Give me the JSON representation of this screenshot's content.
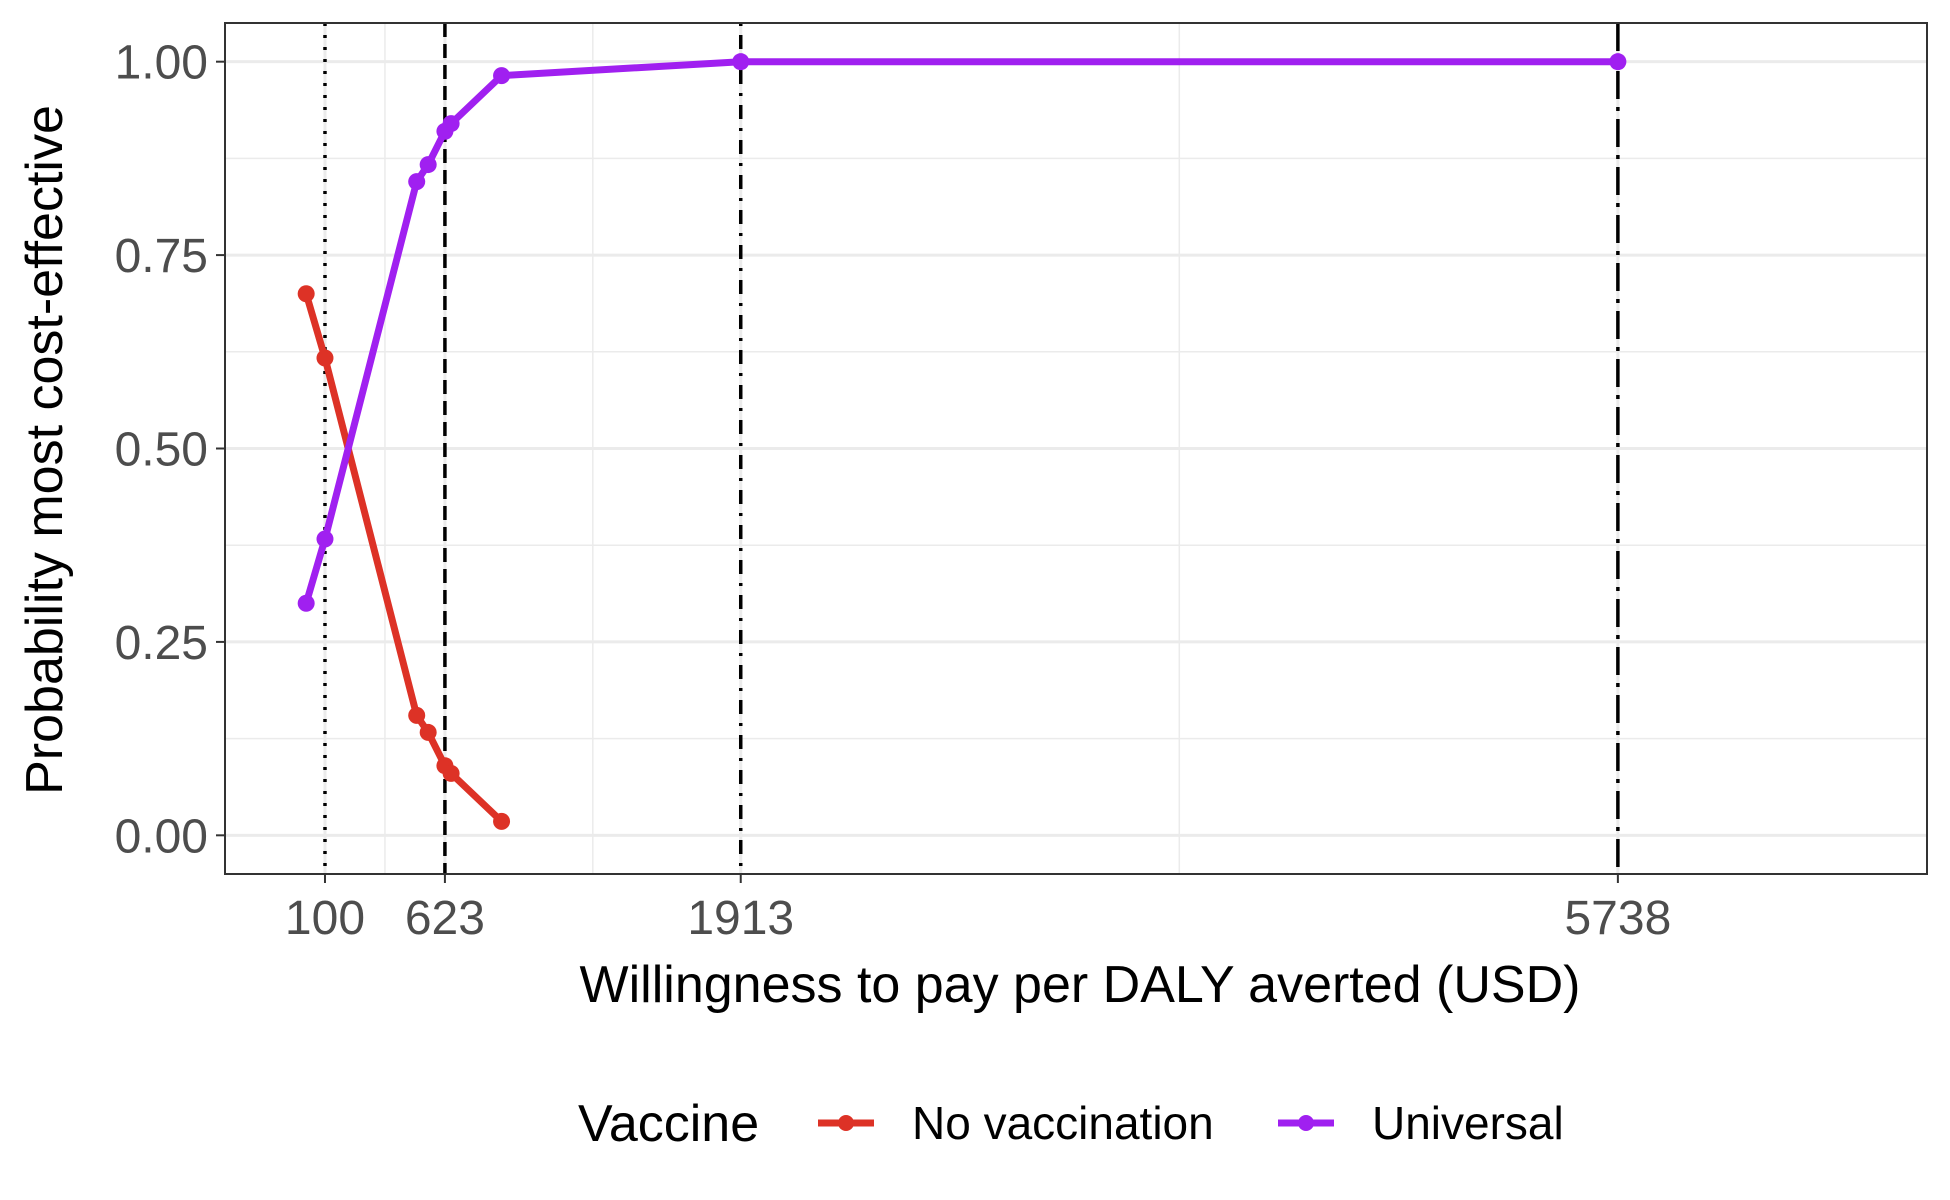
{
  "chart_data": {
    "type": "line",
    "xlabel": "Willingness to pay per DALY averted (USD)",
    "ylabel": "Probability most cost-effective",
    "xlim": [
      -336,
      7086
    ],
    "ylim": [
      -0.05,
      1.05
    ],
    "x_ticks": [
      {
        "value": 100,
        "label": "100"
      },
      {
        "value": 623,
        "label": "623"
      },
      {
        "value": 1913,
        "label": "1913"
      },
      {
        "value": 5738,
        "label": "5738"
      }
    ],
    "y_ticks": [
      {
        "value": 0.0,
        "label": "0.00"
      },
      {
        "value": 0.25,
        "label": "0.25"
      },
      {
        "value": 0.5,
        "label": "0.50"
      },
      {
        "value": 0.75,
        "label": "0.75"
      },
      {
        "value": 1.0,
        "label": "1.00"
      }
    ],
    "x_minor_gridlines": [
      361.5,
      1268,
      3825.5
    ],
    "y_minor_gridlines": [
      0.125,
      0.375,
      0.625,
      0.875
    ],
    "grid": true,
    "reference_lines": [
      {
        "x": 100,
        "style": "dotted"
      },
      {
        "x": 623,
        "style": "dashed"
      },
      {
        "x": 1913,
        "style": "dotdash"
      },
      {
        "x": 5738,
        "style": "longdash"
      }
    ],
    "series": [
      {
        "name": "No vaccination",
        "color": "#dd3226",
        "x": [
          18,
          100,
          500,
          550,
          623,
          650,
          870
        ],
        "y": [
          0.7,
          0.617,
          0.155,
          0.133,
          0.09,
          0.08,
          0.018
        ]
      },
      {
        "name": "Universal",
        "color": "#a020f0",
        "x": [
          18,
          100,
          500,
          550,
          623,
          650,
          870,
          1913,
          5738
        ],
        "y": [
          0.3,
          0.383,
          0.845,
          0.867,
          0.91,
          0.92,
          0.982,
          1.0,
          1.0
        ]
      }
    ],
    "legend": {
      "title": "Vaccine",
      "placement": "bottom",
      "entries": [
        "No vaccination",
        "Universal"
      ]
    }
  }
}
